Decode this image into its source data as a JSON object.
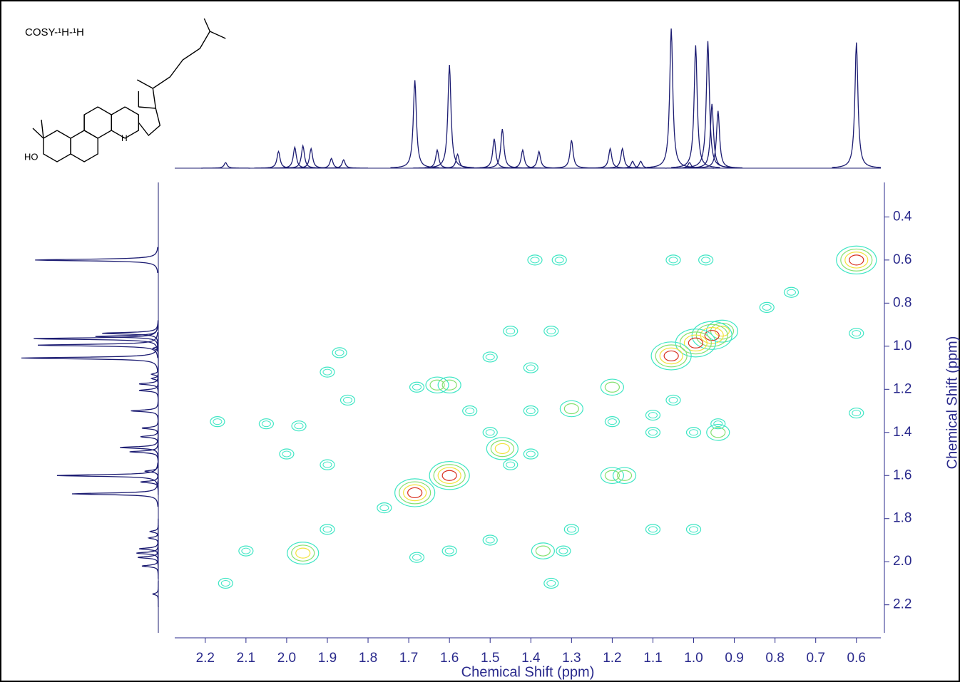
{
  "chart_data": {
    "type": "contour",
    "title": "COSY-¹H-¹H",
    "xlabel": "Chemical Shift (ppm)",
    "ylabel": "Chemical Shift (ppm)",
    "xlim": [
      2.275,
      0.54
    ],
    "ylim": [
      0.24,
      2.33
    ],
    "xticks": [
      2.2,
      2.1,
      {
        "value": 2,
        "label": "2.0"
      },
      1.9,
      1.8,
      1.7,
      1.6,
      1.5,
      1.4,
      1.3,
      1.2,
      1.1,
      {
        "value": 1,
        "label": "1.0"
      },
      0.9,
      0.8,
      0.7,
      0.6
    ],
    "yticks": [
      0.4,
      0.6,
      0.8,
      {
        "value": 1,
        "label": "1.0"
      },
      1.2,
      1.4,
      1.6,
      1.8,
      {
        "value": 2,
        "label": "2.0"
      },
      2.2
    ],
    "spectrum_color": "#1c1c72",
    "axis_color": "#2a2a8c",
    "contour_colors": [
      "#3ee6c4",
      "#86e070",
      "#f2e23c",
      "#d83020"
    ],
    "structure_labels": [
      "HO",
      "H"
    ],
    "spectrum": {
      "x": [
        2.15,
        2.02,
        1.98,
        1.96,
        1.94,
        1.89,
        1.86,
        1.685,
        1.63,
        1.6,
        1.58,
        1.49,
        1.47,
        1.42,
        1.38,
        1.3,
        1.205,
        1.175,
        1.15,
        1.13,
        1.055,
        1.01,
        0.995,
        0.965,
        0.955,
        0.94,
        0.6
      ],
      "values": [
        4,
        12,
        15,
        16,
        14,
        7,
        6,
        63,
        13,
        74,
        10,
        21,
        28,
        13,
        12,
        20,
        14,
        14,
        5,
        5,
        100,
        4,
        88,
        91,
        46,
        41,
        90
      ]
    },
    "cross_peaks": {
      "x": [
        0.6,
        0.76,
        0.82,
        0.93,
        0.955,
        0.995,
        1.055,
        1.2,
        1.3,
        1.47,
        1.6,
        1.685,
        1.96,
        1.6,
        1.63,
        1.2,
        1.17,
        1.45,
        1.35,
        0.94,
        0.94,
        1.37,
        1.32,
        1.97,
        2.05,
        2.17,
        1.87,
        1.9,
        1.85,
        1.0,
        1.1,
        1.4,
        1.5,
        1.9,
        1.9,
        2.0,
        2.1,
        2.15,
        1.35,
        1.5,
        1.6,
        1.1,
        1.0,
        1.3,
        1.45,
        1.5,
        1.4,
        1.55,
        1.05,
        1.1,
        1.4,
        1.2,
        0.6,
        0.6,
        1.33,
        1.39,
        1.05,
        0.97,
        1.68,
        1.68,
        1.76
      ],
      "y": [
        0.6,
        0.75,
        0.82,
        0.93,
        0.95,
        0.985,
        1.045,
        1.19,
        1.29,
        1.475,
        1.6,
        1.68,
        1.96,
        1.18,
        1.18,
        1.6,
        1.6,
        0.93,
        0.93,
        1.4,
        1.36,
        1.95,
        1.95,
        1.37,
        1.36,
        1.35,
        1.03,
        1.12,
        1.25,
        1.4,
        1.4,
        1.1,
        1.05,
        1.85,
        1.55,
        1.5,
        1.95,
        2.1,
        2.1,
        1.9,
        1.95,
        1.85,
        1.85,
        1.85,
        1.55,
        1.4,
        1.5,
        1.3,
        1.25,
        1.32,
        1.3,
        1.35,
        0.94,
        1.31,
        0.6,
        0.6,
        0.6,
        0.6,
        1.98,
        1.19,
        1.75
      ],
      "values": [
        4,
        1,
        1,
        3,
        4,
        4,
        4,
        2,
        2,
        3,
        4,
        4,
        3,
        2,
        2,
        2,
        2,
        1,
        1,
        2,
        1,
        2,
        1,
        1,
        1,
        1,
        1,
        1,
        1,
        1,
        1,
        1,
        1,
        1,
        1,
        1,
        1,
        1,
        1,
        1,
        1,
        1,
        1,
        1,
        1,
        1,
        1,
        1,
        1,
        1,
        1,
        1,
        1,
        1,
        1,
        1,
        1,
        1,
        1,
        1,
        1
      ]
    }
  }
}
